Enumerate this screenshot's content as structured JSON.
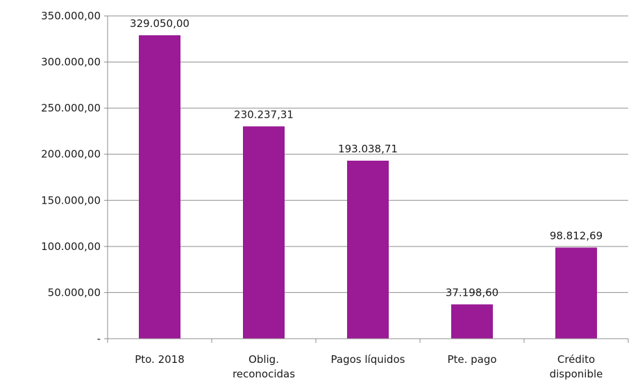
{
  "chart_data": {
    "type": "bar",
    "categories": [
      [
        "Pto. 2018"
      ],
      [
        "Oblig.",
        "reconocidas"
      ],
      [
        "Pagos líquidos"
      ],
      [
        "Pte. pago"
      ],
      [
        "Crédito",
        "disponible"
      ]
    ],
    "values": [
      329050.0,
      230237.31,
      193038.71,
      37198.6,
      98812.69
    ],
    "value_labels": [
      "329.050,00",
      "230.237,31",
      "193.038,71",
      "37.198,60",
      "98.812,69"
    ],
    "ylim": [
      0,
      350000
    ],
    "y_ticks": [
      0,
      50000,
      100000,
      150000,
      200000,
      250000,
      300000,
      350000
    ],
    "y_tick_labels": [
      "-",
      "50.000,00",
      "100.000,00",
      "150.000,00",
      "200.000,00",
      "250.000,00",
      "300.000,00",
      "350.000,00"
    ],
    "grid": true,
    "legend": "none",
    "bar_color": "#9b1a96",
    "grid_color": "#8c8c8c"
  }
}
